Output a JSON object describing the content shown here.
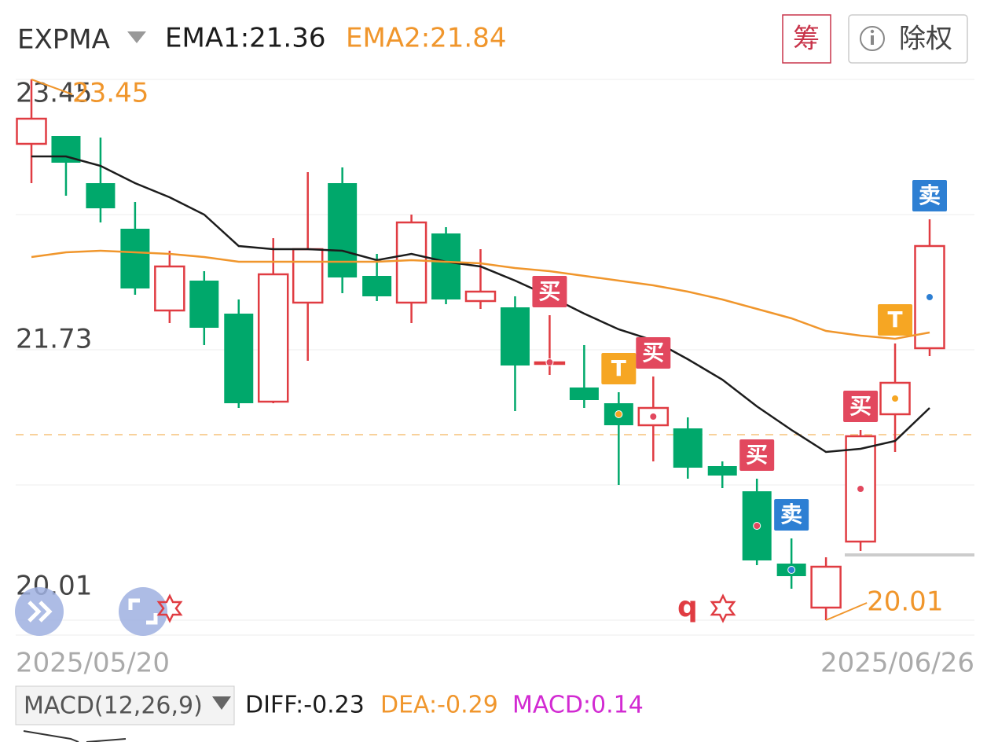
{
  "header": {
    "indicator": "EXPMA",
    "legend": [
      "EMA1:21.36",
      "EMA2:21.84"
    ],
    "chip_button": "筹",
    "adjust_button": "除权"
  },
  "chart_data": {
    "type": "candlestick",
    "x": [
      "2025/05/20",
      null,
      null,
      null,
      null,
      null,
      null,
      null,
      null,
      null,
      null,
      null,
      null,
      null,
      null,
      null,
      null,
      null,
      null,
      null,
      null,
      null,
      null,
      null,
      null,
      null,
      "2025/06/26"
    ],
    "open": [
      23.04,
      23.09,
      22.79,
      22.5,
      21.98,
      22.17,
      21.96,
      21.4,
      22.03,
      22.79,
      22.2,
      22.03,
      22.47,
      22.04,
      22.0,
      21.65,
      21.49,
      21.39,
      21.25,
      21.23,
      20.99,
      20.83,
      20.37,
      20.09,
      20.51,
      21.32,
      21.74
    ],
    "high": [
      23.45,
      23.09,
      23.08,
      22.67,
      22.36,
      22.23,
      22.05,
      22.44,
      22.86,
      22.89,
      22.34,
      22.59,
      22.51,
      22.37,
      22.07,
      21.95,
      21.76,
      21.46,
      21.56,
      21.3,
      21.02,
      20.91,
      20.53,
      20.41,
      21.22,
      21.77,
      22.56
    ],
    "low": [
      22.79,
      22.71,
      22.54,
      22.08,
      21.9,
      21.76,
      21.36,
      21.39,
      21.66,
      22.09,
      22.04,
      21.9,
      22.02,
      21.99,
      21.34,
      21.57,
      21.36,
      20.87,
      21.02,
      20.91,
      20.85,
      20.36,
      20.21,
      20.01,
      20.45,
      21.08,
      21.69
    ],
    "close": [
      23.2,
      22.92,
      22.63,
      22.12,
      22.26,
      21.87,
      21.39,
      22.21,
      22.37,
      22.19,
      22.07,
      22.54,
      22.05,
      22.1,
      21.63,
      21.65,
      21.41,
      21.25,
      21.36,
      20.98,
      20.93,
      20.39,
      20.29,
      20.35,
      21.18,
      21.52,
      22.39
    ],
    "up_color": "#e03c42",
    "down_color": "#00a86b",
    "series": [
      {
        "name": "EMA1",
        "color": "#1c1c1c",
        "values": [
          22.96,
          22.96,
          22.9,
          22.79,
          22.7,
          22.59,
          22.39,
          22.37,
          22.37,
          22.36,
          22.3,
          22.34,
          22.29,
          22.26,
          22.17,
          22.07,
          21.96,
          21.86,
          21.79,
          21.67,
          21.54,
          21.37,
          21.22,
          21.08,
          21.1,
          21.15,
          21.36
        ]
      },
      {
        "name": "EMA2",
        "color": "#f0962c",
        "values": [
          22.32,
          22.35,
          22.36,
          22.35,
          22.34,
          22.32,
          22.29,
          22.29,
          22.29,
          22.29,
          22.29,
          22.3,
          22.29,
          22.28,
          22.25,
          22.23,
          22.2,
          22.17,
          22.14,
          22.1,
          22.05,
          21.99,
          21.93,
          21.85,
          21.82,
          21.8,
          21.84
        ]
      }
    ],
    "signals": [
      null,
      null,
      null,
      null,
      null,
      null,
      null,
      null,
      null,
      null,
      null,
      null,
      null,
      null,
      null,
      "买",
      null,
      "T",
      "买",
      null,
      null,
      "买",
      "卖",
      null,
      "买",
      "T",
      "卖"
    ],
    "signal_colors": {
      "买": "#e2485e",
      "卖": "#2d7fd3",
      "T": "#f6a623"
    },
    "annotations": [
      {
        "value": 23.45,
        "label": "23.45"
      },
      {
        "value": 20.01,
        "label": "20.01"
      }
    ],
    "reference_line": 21.19,
    "marker_text": "q",
    "ylim": [
      20.01,
      23.45
    ],
    "yticks": [
      23.45,
      21.73,
      20.01
    ],
    "grid": true
  },
  "macd_header": {
    "selector": "MACD(12,26,9)",
    "diff": "DIFF:-0.23",
    "dea": "DEA:-0.29",
    "macd": "MACD:0.14"
  }
}
